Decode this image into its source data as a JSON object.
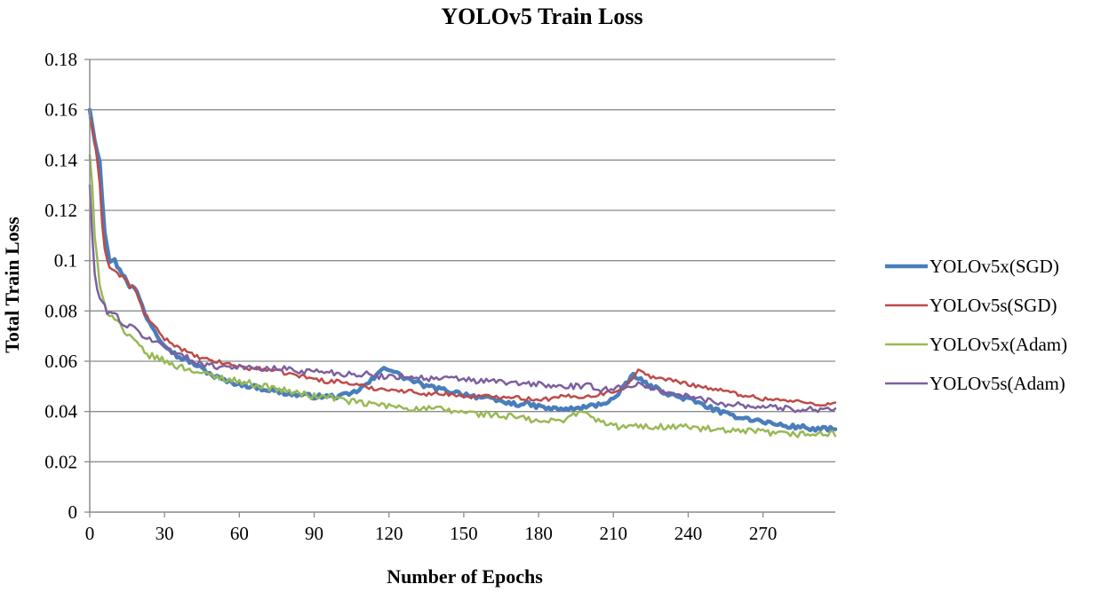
{
  "chart_data": {
    "type": "line",
    "title": "YOLOv5 Train Loss",
    "xlabel": "Number of Epochs",
    "ylabel": "Total Train Loss",
    "xlim": [
      0,
      299
    ],
    "ylim": [
      0,
      0.18
    ],
    "x_ticks": [
      0,
      30,
      60,
      90,
      120,
      150,
      180,
      210,
      240,
      270
    ],
    "x_tick_labels": [
      "0",
      "30",
      "60",
      "90",
      "120",
      "150",
      "180",
      "210",
      "240",
      "270"
    ],
    "y_ticks": [
      0,
      0.02,
      0.04,
      0.06,
      0.08,
      0.1,
      0.12,
      0.14,
      0.16,
      0.18
    ],
    "y_tick_labels": [
      "0",
      "0.02",
      "0.04",
      "0.06",
      "0.08",
      "0.1",
      "0.12",
      "0.14",
      "0.16",
      "0.18"
    ],
    "grid": "horizontal",
    "legend_position": "right",
    "series": [
      {
        "name": "YOLOv5x(SGD)",
        "color": "#4a7ebb",
        "width": "thick",
        "points": [
          [
            0,
            0.16
          ],
          [
            2,
            0.148
          ],
          [
            4,
            0.14
          ],
          [
            5,
            0.125
          ],
          [
            6,
            0.112
          ],
          [
            8,
            0.1
          ],
          [
            10,
            0.1
          ],
          [
            12,
            0.096
          ],
          [
            14,
            0.094
          ],
          [
            16,
            0.09
          ],
          [
            18,
            0.089
          ],
          [
            20,
            0.085
          ],
          [
            22,
            0.079
          ],
          [
            25,
            0.074
          ],
          [
            28,
            0.069
          ],
          [
            30,
            0.067
          ],
          [
            35,
            0.062
          ],
          [
            40,
            0.06
          ],
          [
            45,
            0.057
          ],
          [
            50,
            0.054
          ],
          [
            55,
            0.052
          ],
          [
            60,
            0.051
          ],
          [
            65,
            0.05
          ],
          [
            70,
            0.049
          ],
          [
            75,
            0.048
          ],
          [
            80,
            0.047
          ],
          [
            85,
            0.0465
          ],
          [
            90,
            0.046
          ],
          [
            95,
            0.046
          ],
          [
            100,
            0.046
          ],
          [
            105,
            0.047
          ],
          [
            110,
            0.05
          ],
          [
            115,
            0.054
          ],
          [
            118,
            0.058
          ],
          [
            120,
            0.057
          ],
          [
            125,
            0.054
          ],
          [
            130,
            0.052
          ],
          [
            135,
            0.05
          ],
          [
            140,
            0.049
          ],
          [
            145,
            0.048
          ],
          [
            150,
            0.047
          ],
          [
            155,
            0.046
          ],
          [
            160,
            0.045
          ],
          [
            165,
            0.044
          ],
          [
            170,
            0.043
          ],
          [
            175,
            0.043
          ],
          [
            180,
            0.042
          ],
          [
            185,
            0.041
          ],
          [
            190,
            0.041
          ],
          [
            195,
            0.041
          ],
          [
            200,
            0.042
          ],
          [
            205,
            0.043
          ],
          [
            210,
            0.045
          ],
          [
            213,
            0.048
          ],
          [
            216,
            0.052
          ],
          [
            218,
            0.055
          ],
          [
            220,
            0.053
          ],
          [
            225,
            0.05
          ],
          [
            230,
            0.048
          ],
          [
            235,
            0.046
          ],
          [
            240,
            0.045
          ],
          [
            245,
            0.043
          ],
          [
            250,
            0.041
          ],
          [
            255,
            0.039
          ],
          [
            260,
            0.038
          ],
          [
            265,
            0.037
          ],
          [
            270,
            0.036
          ],
          [
            275,
            0.035
          ],
          [
            280,
            0.034
          ],
          [
            285,
            0.034
          ],
          [
            290,
            0.033
          ],
          [
            295,
            0.033
          ],
          [
            299,
            0.033
          ]
        ]
      },
      {
        "name": "YOLOv5s(SGD)",
        "color": "#be4b48",
        "width": "medium",
        "points": [
          [
            0,
            0.157
          ],
          [
            2,
            0.148
          ],
          [
            4,
            0.13
          ],
          [
            5,
            0.115
          ],
          [
            6,
            0.105
          ],
          [
            8,
            0.097
          ],
          [
            10,
            0.096
          ],
          [
            12,
            0.094
          ],
          [
            14,
            0.093
          ],
          [
            16,
            0.09
          ],
          [
            18,
            0.089
          ],
          [
            20,
            0.084
          ],
          [
            22,
            0.079
          ],
          [
            25,
            0.075
          ],
          [
            28,
            0.071
          ],
          [
            30,
            0.069
          ],
          [
            35,
            0.066
          ],
          [
            40,
            0.063
          ],
          [
            45,
            0.061
          ],
          [
            50,
            0.06
          ],
          [
            55,
            0.059
          ],
          [
            60,
            0.058
          ],
          [
            65,
            0.057
          ],
          [
            70,
            0.057
          ],
          [
            75,
            0.056
          ],
          [
            80,
            0.055
          ],
          [
            85,
            0.054
          ],
          [
            90,
            0.053
          ],
          [
            95,
            0.052
          ],
          [
            100,
            0.052
          ],
          [
            105,
            0.051
          ],
          [
            110,
            0.05
          ],
          [
            115,
            0.049
          ],
          [
            120,
            0.049
          ],
          [
            125,
            0.048
          ],
          [
            130,
            0.048
          ],
          [
            135,
            0.047
          ],
          [
            140,
            0.047
          ],
          [
            145,
            0.047
          ],
          [
            150,
            0.046
          ],
          [
            155,
            0.046
          ],
          [
            160,
            0.046
          ],
          [
            165,
            0.046
          ],
          [
            170,
            0.046
          ],
          [
            175,
            0.045
          ],
          [
            180,
            0.045
          ],
          [
            185,
            0.045
          ],
          [
            190,
            0.046
          ],
          [
            195,
            0.046
          ],
          [
            200,
            0.046
          ],
          [
            205,
            0.047
          ],
          [
            210,
            0.048
          ],
          [
            215,
            0.05
          ],
          [
            218,
            0.054
          ],
          [
            220,
            0.056
          ],
          [
            225,
            0.054
          ],
          [
            230,
            0.053
          ],
          [
            235,
            0.052
          ],
          [
            240,
            0.051
          ],
          [
            245,
            0.05
          ],
          [
            250,
            0.049
          ],
          [
            255,
            0.048
          ],
          [
            260,
            0.047
          ],
          [
            265,
            0.046
          ],
          [
            270,
            0.045
          ],
          [
            275,
            0.045
          ],
          [
            280,
            0.044
          ],
          [
            285,
            0.044
          ],
          [
            290,
            0.043
          ],
          [
            295,
            0.043
          ],
          [
            299,
            0.043
          ]
        ]
      },
      {
        "name": "YOLOv5x(Adam)",
        "color": "#98b954",
        "width": "medium",
        "points": [
          [
            0,
            0.142
          ],
          [
            1,
            0.13
          ],
          [
            2,
            0.11
          ],
          [
            3,
            0.1
          ],
          [
            4,
            0.09
          ],
          [
            5,
            0.085
          ],
          [
            7,
            0.08
          ],
          [
            9,
            0.078
          ],
          [
            11,
            0.077
          ],
          [
            13,
            0.073
          ],
          [
            15,
            0.07
          ],
          [
            18,
            0.068
          ],
          [
            20,
            0.066
          ],
          [
            22,
            0.063
          ],
          [
            25,
            0.062
          ],
          [
            28,
            0.061
          ],
          [
            30,
            0.06
          ],
          [
            35,
            0.058
          ],
          [
            40,
            0.057
          ],
          [
            45,
            0.055
          ],
          [
            50,
            0.054
          ],
          [
            55,
            0.053
          ],
          [
            60,
            0.052
          ],
          [
            65,
            0.051
          ],
          [
            70,
            0.05
          ],
          [
            75,
            0.049
          ],
          [
            80,
            0.048
          ],
          [
            85,
            0.047
          ],
          [
            90,
            0.046
          ],
          [
            95,
            0.046
          ],
          [
            100,
            0.045
          ],
          [
            105,
            0.044
          ],
          [
            110,
            0.043
          ],
          [
            115,
            0.043
          ],
          [
            120,
            0.042
          ],
          [
            125,
            0.042
          ],
          [
            130,
            0.041
          ],
          [
            135,
            0.041
          ],
          [
            140,
            0.041
          ],
          [
            145,
            0.04
          ],
          [
            150,
            0.04
          ],
          [
            155,
            0.039
          ],
          [
            160,
            0.039
          ],
          [
            165,
            0.038
          ],
          [
            170,
            0.038
          ],
          [
            175,
            0.037
          ],
          [
            180,
            0.036
          ],
          [
            185,
            0.036
          ],
          [
            190,
            0.037
          ],
          [
            195,
            0.039
          ],
          [
            197,
            0.041
          ],
          [
            200,
            0.038
          ],
          [
            205,
            0.036
          ],
          [
            210,
            0.034
          ],
          [
            215,
            0.034
          ],
          [
            220,
            0.034
          ],
          [
            225,
            0.034
          ],
          [
            230,
            0.034
          ],
          [
            235,
            0.034
          ],
          [
            240,
            0.034
          ],
          [
            245,
            0.033
          ],
          [
            250,
            0.033
          ],
          [
            255,
            0.032
          ],
          [
            260,
            0.032
          ],
          [
            265,
            0.032
          ],
          [
            270,
            0.032
          ],
          [
            275,
            0.031
          ],
          [
            280,
            0.031
          ],
          [
            285,
            0.031
          ],
          [
            290,
            0.031
          ],
          [
            295,
            0.031
          ],
          [
            299,
            0.031
          ]
        ]
      },
      {
        "name": "YOLOv5s(Adam)",
        "color": "#7d5fa0",
        "width": "medium",
        "points": [
          [
            0,
            0.13
          ],
          [
            1,
            0.11
          ],
          [
            2,
            0.095
          ],
          [
            3,
            0.088
          ],
          [
            5,
            0.083
          ],
          [
            7,
            0.08
          ],
          [
            9,
            0.079
          ],
          [
            11,
            0.078
          ],
          [
            13,
            0.075
          ],
          [
            15,
            0.074
          ],
          [
            18,
            0.073
          ],
          [
            20,
            0.071
          ],
          [
            22,
            0.07
          ],
          [
            25,
            0.068
          ],
          [
            28,
            0.067
          ],
          [
            30,
            0.066
          ],
          [
            35,
            0.063
          ],
          [
            40,
            0.061
          ],
          [
            45,
            0.059
          ],
          [
            50,
            0.058
          ],
          [
            55,
            0.058
          ],
          [
            60,
            0.058
          ],
          [
            65,
            0.057
          ],
          [
            70,
            0.057
          ],
          [
            75,
            0.057
          ],
          [
            80,
            0.057
          ],
          [
            85,
            0.056
          ],
          [
            90,
            0.056
          ],
          [
            95,
            0.056
          ],
          [
            100,
            0.055
          ],
          [
            105,
            0.055
          ],
          [
            110,
            0.055
          ],
          [
            115,
            0.054
          ],
          [
            120,
            0.054
          ],
          [
            125,
            0.054
          ],
          [
            130,
            0.054
          ],
          [
            135,
            0.053
          ],
          [
            140,
            0.053
          ],
          [
            145,
            0.053
          ],
          [
            150,
            0.053
          ],
          [
            155,
            0.052
          ],
          [
            160,
            0.052
          ],
          [
            165,
            0.052
          ],
          [
            170,
            0.051
          ],
          [
            175,
            0.051
          ],
          [
            180,
            0.051
          ],
          [
            185,
            0.05
          ],
          [
            190,
            0.05
          ],
          [
            195,
            0.05
          ],
          [
            200,
            0.05
          ],
          [
            205,
            0.049
          ],
          [
            210,
            0.049
          ],
          [
            215,
            0.05
          ],
          [
            220,
            0.051
          ],
          [
            225,
            0.049
          ],
          [
            230,
            0.048
          ],
          [
            235,
            0.047
          ],
          [
            240,
            0.046
          ],
          [
            245,
            0.045
          ],
          [
            250,
            0.044
          ],
          [
            255,
            0.043
          ],
          [
            260,
            0.043
          ],
          [
            265,
            0.042
          ],
          [
            270,
            0.042
          ],
          [
            275,
            0.042
          ],
          [
            280,
            0.041
          ],
          [
            285,
            0.041
          ],
          [
            290,
            0.041
          ],
          [
            295,
            0.041
          ],
          [
            299,
            0.041
          ]
        ]
      }
    ]
  }
}
